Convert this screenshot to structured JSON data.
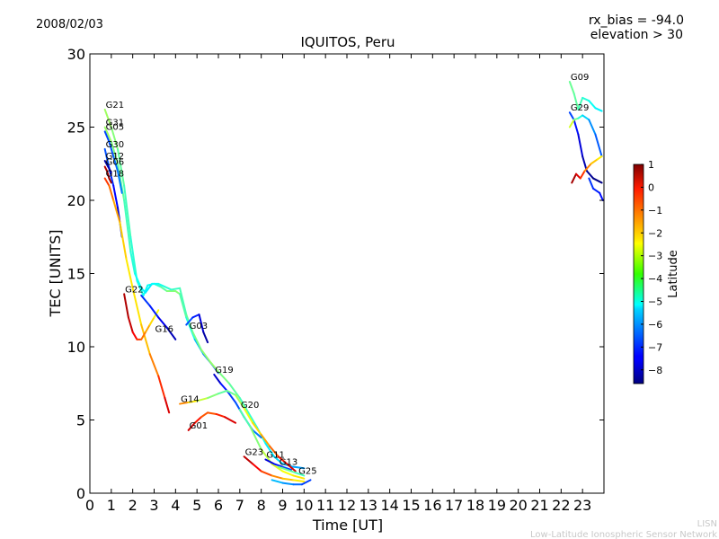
{
  "date_label": "2008/02/03",
  "rx_bias_label": "rx_bias = -94.0",
  "elevation_label": "elevation > 30",
  "footer": {
    "line1": "LISN",
    "line2": "Low-Latitude Ionospheric Sensor Network"
  },
  "chart_data": {
    "type": "line",
    "title": "IQUITOS, Peru",
    "xlabel": "Time [UT]",
    "ylabel": "TEC [UNITS]",
    "xlim": [
      0,
      24
    ],
    "ylim": [
      0,
      30
    ],
    "x_ticks": [
      "0",
      "1",
      "2",
      "3",
      "4",
      "5",
      "6",
      "7",
      "8",
      "9",
      "10",
      "11",
      "12",
      "13",
      "14",
      "15",
      "16",
      "17",
      "18",
      "19",
      "20",
      "21",
      "22",
      "23"
    ],
    "y_ticks": [
      "0",
      "5",
      "10",
      "15",
      "20",
      "25",
      "30"
    ],
    "grid": false,
    "colorbar": {
      "label": "Latitude",
      "min": -8.6,
      "max": 1.0,
      "ticks": [
        "1",
        "0",
        "−1",
        "−2",
        "−3",
        "−4",
        "−5",
        "−6",
        "−7",
        "−8"
      ]
    },
    "series": [
      {
        "name": "G21",
        "label_at": [
          0.7,
          26.2
        ],
        "points": [
          [
            0.7,
            26.2,
            -3.5
          ],
          [
            1.0,
            25.0,
            -3.5
          ],
          [
            1.3,
            23.5,
            -4.0
          ],
          [
            1.6,
            21.0,
            -4.2
          ],
          [
            1.9,
            17.5,
            -4.5
          ],
          [
            2.2,
            14.5,
            -4.7
          ],
          [
            2.5,
            13.5,
            -4.8
          ],
          [
            2.7,
            14.2,
            -5.0
          ],
          [
            3.0,
            14.3,
            -4.8
          ],
          [
            3.3,
            14.1,
            -4.3
          ],
          [
            3.6,
            13.8,
            -3.9
          ],
          [
            4.0,
            13.8,
            -3.6
          ],
          [
            4.2,
            13.6,
            -3.8
          ],
          [
            4.5,
            12.0,
            -4.5
          ],
          [
            4.9,
            10.5,
            -5.3
          ],
          [
            5.3,
            9.5,
            -6.0
          ],
          [
            5.7,
            8.8,
            -6.5
          ],
          [
            6.0,
            8.2,
            -6.8
          ]
        ]
      },
      {
        "name": "G31",
        "label_at": [
          0.7,
          25.0
        ],
        "points": [
          [
            0.7,
            25.0,
            -3.5
          ],
          [
            1.0,
            24.0,
            -3.6
          ],
          [
            1.3,
            22.5,
            -4.0
          ],
          [
            1.6,
            20.0,
            -4.2
          ],
          [
            1.9,
            16.5,
            -4.5
          ],
          [
            2.1,
            15.0,
            -4.8
          ],
          [
            2.4,
            14.0,
            -5.0
          ],
          [
            2.6,
            13.7,
            -5.2
          ],
          [
            2.9,
            14.3,
            -5.1
          ],
          [
            3.2,
            14.3,
            -4.9
          ],
          [
            3.5,
            14.1,
            -4.7
          ],
          [
            3.8,
            13.9,
            -4.5
          ],
          [
            4.2,
            14.0,
            -4.4
          ],
          [
            4.5,
            12.2,
            -4.2
          ],
          [
            4.8,
            11.0,
            -4.0
          ],
          [
            5.2,
            9.8,
            -3.8
          ],
          [
            5.6,
            9.0,
            -3.5
          ],
          [
            6.0,
            8.3,
            -3.7
          ],
          [
            6.5,
            7.5,
            -4.0
          ],
          [
            7.0,
            6.5,
            -4.2
          ],
          [
            7.4,
            5.5,
            -4.5
          ],
          [
            7.8,
            4.5,
            -4.7
          ],
          [
            8.2,
            3.4,
            -5.0
          ],
          [
            8.6,
            2.5,
            -5.3
          ],
          [
            9.0,
            2.0,
            -5.5
          ],
          [
            9.5,
            1.8,
            -5.8
          ],
          [
            10.0,
            1.7,
            -6.0
          ]
        ]
      },
      {
        "name": "G05",
        "label_at": [
          0.7,
          24.7
        ],
        "points": [
          [
            0.7,
            24.7,
            -6.8
          ],
          [
            0.9,
            24.0,
            -6.7
          ],
          [
            1.1,
            23.0,
            -6.5
          ],
          [
            1.3,
            22.0,
            -6.3
          ],
          [
            1.5,
            20.5,
            -6.2
          ]
        ]
      },
      {
        "name": "G30",
        "label_at": [
          0.7,
          23.5
        ],
        "points": [
          [
            0.7,
            23.5,
            -6.5
          ],
          [
            0.9,
            22.2,
            -6.8
          ],
          [
            1.1,
            21.0,
            -7.2
          ],
          [
            1.3,
            19.5,
            -7.6
          ],
          [
            1.5,
            17.5,
            -8.0
          ]
        ]
      },
      {
        "name": "G12",
        "label_at": [
          0.7,
          22.7
        ],
        "points": [
          [
            0.7,
            22.7,
            -8.3
          ],
          [
            0.85,
            22.3,
            -8.2
          ],
          [
            1.0,
            21.9,
            -8.0
          ]
        ]
      },
      {
        "name": "G06",
        "label_at": [
          0.7,
          22.3
        ],
        "points": [
          [
            0.7,
            22.3,
            0.5
          ],
          [
            0.8,
            22.0,
            0.6
          ],
          [
            0.9,
            21.5,
            0.7
          ],
          [
            1.0,
            21.2,
            0.8
          ]
        ]
      },
      {
        "name": "G18",
        "label_at": [
          0.7,
          21.5
        ],
        "points": [
          [
            0.7,
            21.5,
            -0.5
          ],
          [
            0.9,
            21.0,
            -1.0
          ],
          [
            1.1,
            20.0,
            -1.5
          ],
          [
            1.4,
            18.5,
            -2.0
          ],
          [
            1.7,
            16.0,
            -2.3
          ],
          [
            2.0,
            14.0,
            -2.5
          ],
          [
            2.4,
            11.5,
            -2.2
          ],
          [
            2.8,
            9.5,
            -1.8
          ],
          [
            3.2,
            8.0,
            -1.0
          ],
          [
            3.5,
            6.5,
            -0.2
          ],
          [
            3.7,
            5.5,
            0.5
          ]
        ]
      },
      {
        "name": "G22",
        "label_at": [
          1.6,
          13.6
        ],
        "points": [
          [
            1.6,
            13.6,
            0.6
          ],
          [
            1.8,
            12.0,
            0.5
          ],
          [
            2.0,
            11.0,
            0.2
          ],
          [
            2.2,
            10.5,
            -0.5
          ],
          [
            2.4,
            10.5,
            -1.0
          ],
          [
            2.6,
            11.0,
            -1.5
          ],
          [
            2.8,
            11.5,
            -2.0
          ],
          [
            3.0,
            12.0,
            -2.5
          ],
          [
            3.2,
            12.5,
            -2.8
          ]
        ]
      },
      {
        "name": "G16",
        "label_at": [
          3.0,
          10.9
        ],
        "points": [
          [
            2.4,
            13.5,
            -6.8
          ],
          [
            2.8,
            12.8,
            -7.0
          ],
          [
            3.2,
            12.0,
            -7.3
          ],
          [
            3.6,
            11.3,
            -7.8
          ],
          [
            4.0,
            10.5,
            -8.3
          ]
        ]
      },
      {
        "name": "G03",
        "label_at": [
          4.6,
          11.1
        ],
        "points": [
          [
            4.5,
            11.5,
            -6.5
          ],
          [
            4.8,
            12.0,
            -6.8
          ],
          [
            5.1,
            12.2,
            -7.5
          ],
          [
            5.3,
            11.0,
            -8.0
          ],
          [
            5.5,
            10.3,
            -8.5
          ]
        ]
      },
      {
        "name": "G19",
        "label_at": [
          5.8,
          8.1
        ],
        "points": [
          [
            5.8,
            8.1,
            -8.3
          ],
          [
            6.1,
            7.5,
            -7.5
          ],
          [
            6.4,
            7.0,
            -7.0
          ],
          [
            6.8,
            6.2,
            -6.7
          ],
          [
            7.2,
            5.2,
            -6.5
          ],
          [
            7.6,
            4.3,
            -6.3
          ],
          [
            8.0,
            3.8,
            -6.2
          ]
        ]
      },
      {
        "name": "G14",
        "label_at": [
          4.2,
          6.1
        ],
        "points": [
          [
            4.2,
            6.1,
            -1.0
          ],
          [
            4.6,
            6.2,
            -2.0
          ],
          [
            5.0,
            6.3,
            -2.8
          ],
          [
            5.5,
            6.5,
            -3.5
          ],
          [
            6.0,
            6.8,
            -4.0
          ],
          [
            6.4,
            7.0,
            -4.2
          ],
          [
            6.8,
            6.7,
            -3.8
          ],
          [
            7.2,
            5.8,
            -3.0
          ],
          [
            7.6,
            4.8,
            -2.5
          ],
          [
            8.0,
            4.0,
            -2.0
          ],
          [
            8.4,
            3.2,
            -1.5
          ],
          [
            8.8,
            2.5,
            -0.8
          ],
          [
            9.2,
            2.0,
            0.0
          ],
          [
            9.6,
            1.5,
            0.3
          ]
        ]
      },
      {
        "name": "G01",
        "label_at": [
          4.6,
          4.3
        ],
        "points": [
          [
            4.6,
            4.3,
            0.5
          ],
          [
            4.9,
            4.8,
            0.0
          ],
          [
            5.2,
            5.2,
            -0.8
          ],
          [
            5.5,
            5.5,
            -1.2
          ],
          [
            5.9,
            5.4,
            -0.8
          ],
          [
            6.3,
            5.2,
            -0.2
          ],
          [
            6.8,
            4.8,
            0.5
          ]
        ]
      },
      {
        "name": "G20",
        "label_at": [
          7.0,
          5.7
        ],
        "points": [
          [
            7.0,
            5.7,
            -4.5
          ],
          [
            7.5,
            4.5,
            -4.0
          ],
          [
            8.0,
            3.0,
            -3.5
          ],
          [
            8.5,
            2.0,
            -3.0
          ],
          [
            9.0,
            1.5,
            -2.8
          ],
          [
            9.5,
            1.2,
            -2.5
          ],
          [
            10.0,
            1.0,
            -2.2
          ]
        ]
      },
      {
        "name": "G23",
        "label_at": [
          7.2,
          2.5
        ],
        "points": [
          [
            7.2,
            2.5,
            0.6
          ],
          [
            7.6,
            2.0,
            0.2
          ],
          [
            8.0,
            1.5,
            -0.5
          ],
          [
            8.5,
            1.2,
            -1.2
          ],
          [
            9.0,
            1.0,
            -1.8
          ],
          [
            9.5,
            0.9,
            -2.3
          ],
          [
            10.0,
            0.8,
            -2.6
          ]
        ]
      },
      {
        "name": "G11",
        "label_at": [
          8.2,
          2.3
        ],
        "points": [
          [
            8.2,
            2.3,
            -8.0
          ],
          [
            8.6,
            2.0,
            -7.5
          ],
          [
            9.0,
            1.8,
            -7.0
          ],
          [
            9.4,
            1.6,
            -6.5
          ]
        ]
      },
      {
        "name": "G13",
        "label_at": [
          8.8,
          1.8
        ],
        "points": [
          [
            8.8,
            1.8,
            -3.8
          ],
          [
            9.2,
            1.6,
            -4.0
          ],
          [
            9.6,
            1.4,
            -4.2
          ],
          [
            10.0,
            1.2,
            -4.5
          ]
        ]
      },
      {
        "name": "G25",
        "label_at": [
          9.7,
          1.2
        ],
        "points": [
          [
            8.5,
            0.9,
            -5.5
          ],
          [
            9.0,
            0.7,
            -5.8
          ],
          [
            9.5,
            0.6,
            -6.2
          ],
          [
            9.9,
            0.6,
            -6.6
          ],
          [
            10.3,
            0.9,
            -7.0
          ]
        ]
      },
      {
        "name": "G09",
        "label_at": [
          22.4,
          28.1
        ],
        "points": [
          [
            22.4,
            28.1,
            -4.0
          ],
          [
            22.6,
            27.3,
            -4.0
          ],
          [
            22.8,
            26.2,
            -4.2
          ],
          [
            23.0,
            27.0,
            -4.5
          ],
          [
            23.3,
            26.8,
            -4.8
          ],
          [
            23.6,
            26.3,
            -5.0
          ],
          [
            23.9,
            26.1,
            -5.2
          ]
        ]
      },
      {
        "name": "G29",
        "label_at": [
          22.4,
          26.0
        ],
        "points": [
          [
            22.4,
            26.0,
            -6.5
          ],
          [
            22.6,
            25.5,
            -7.0
          ],
          [
            22.8,
            24.5,
            -7.5
          ],
          [
            23.0,
            23.0,
            -8.0
          ],
          [
            23.2,
            22.0,
            -8.3
          ],
          [
            23.5,
            21.5,
            -8.5
          ],
          [
            23.9,
            21.2,
            -8.6
          ]
        ]
      },
      {
        "name": "",
        "points": [
          [
            22.4,
            25.0,
            -2.5
          ],
          [
            22.6,
            25.5,
            -3.5
          ],
          [
            22.8,
            25.6,
            -4.3
          ],
          [
            23.0,
            25.8,
            -5.0
          ],
          [
            23.3,
            25.5,
            -5.8
          ],
          [
            23.6,
            24.5,
            -6.3
          ],
          [
            23.9,
            23.0,
            -6.8
          ]
        ]
      },
      {
        "name": "",
        "points": [
          [
            22.5,
            21.2,
            0.8
          ],
          [
            22.7,
            21.8,
            0.5
          ],
          [
            22.9,
            21.5,
            -0.3
          ],
          [
            23.1,
            22.0,
            -1.0
          ],
          [
            23.4,
            22.5,
            -1.8
          ],
          [
            23.7,
            22.8,
            -2.3
          ],
          [
            23.9,
            23.0,
            -2.6
          ]
        ]
      },
      {
        "name": "",
        "points": [
          [
            23.3,
            21.5,
            -6.8
          ],
          [
            23.5,
            20.8,
            -7.0
          ],
          [
            23.8,
            20.5,
            -7.2
          ],
          [
            23.95,
            20.0,
            -7.4
          ]
        ]
      }
    ]
  }
}
